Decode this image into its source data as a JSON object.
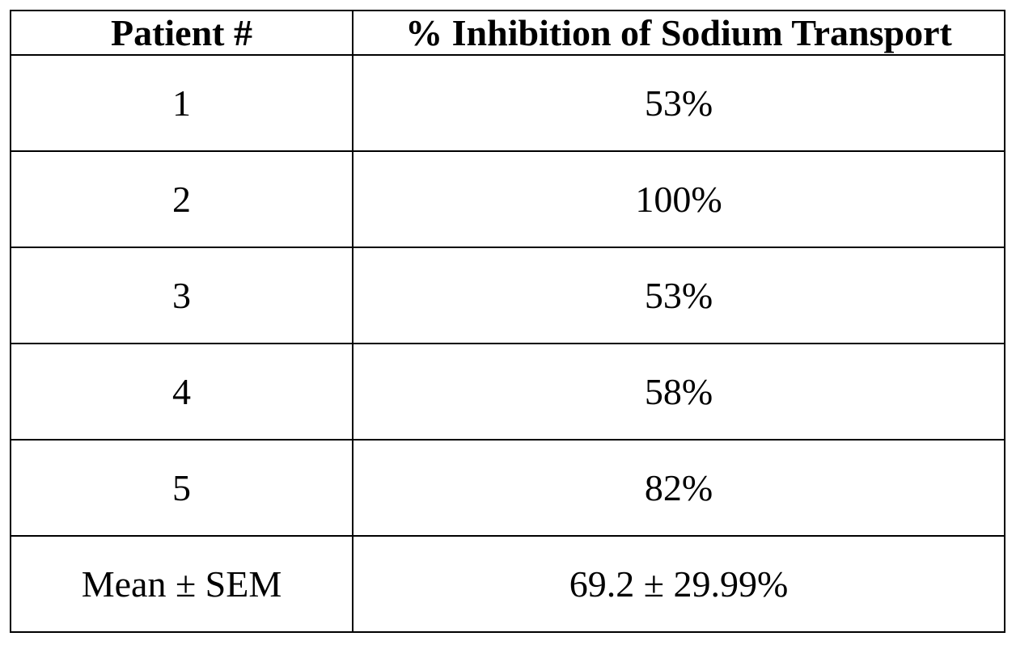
{
  "table": {
    "header": [
      "Patient #",
      "% Inhibition of Sodium Transport"
    ],
    "rows": [
      [
        "1",
        "53%"
      ],
      [
        "2",
        "100%"
      ],
      [
        "3",
        "53%"
      ],
      [
        "4",
        "58%"
      ],
      [
        "5",
        "82%"
      ],
      [
        "Mean ± SEM",
        "69.2 ± 29.99%"
      ]
    ]
  }
}
